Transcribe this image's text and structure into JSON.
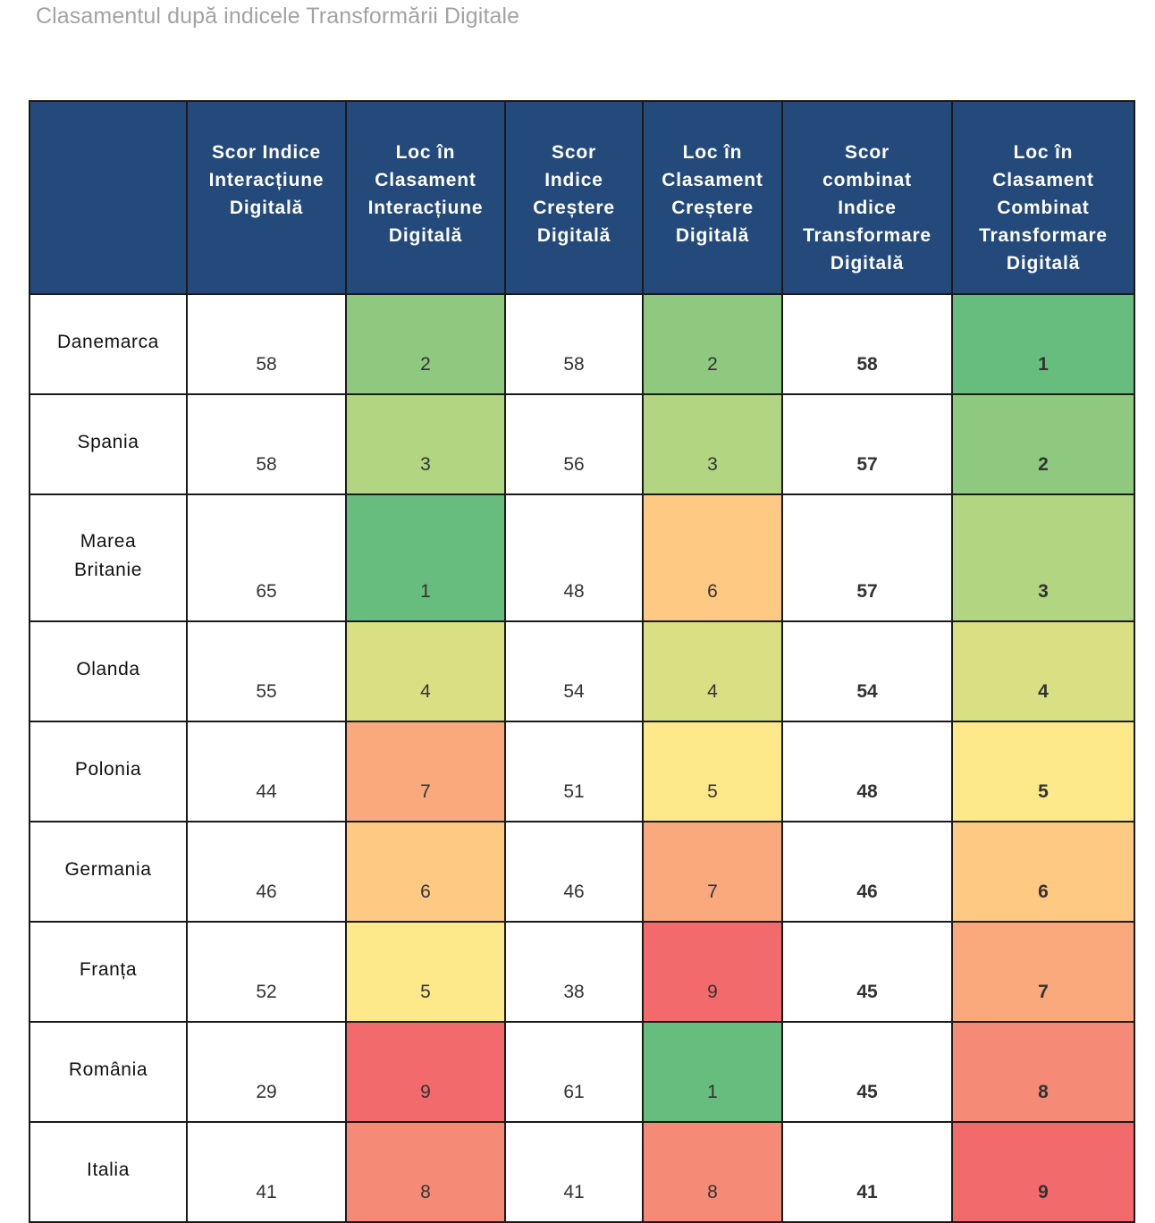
{
  "page": {
    "title": "Clasamentul după indicele Transformării Digitale"
  },
  "colors": {
    "header_bg": "#234a7b",
    "header_text": "#ffffff",
    "title_text": "#a3a3a3",
    "rank_1": "#66bd7d",
    "rank_2": "#8ec97f",
    "rank_3": "#b1d581",
    "rank_4": "#d8e083",
    "rank_5": "#fde98a",
    "rank_6": "#fdc983",
    "rank_7": "#f9a97c",
    "rank_8": "#f58a77",
    "rank_9": "#f26a6c"
  },
  "table": {
    "headers": [
      [
        ""
      ],
      [
        "Scor Indice",
        "Interacțiune",
        "Digitală"
      ],
      [
        "Loc în",
        "Clasament",
        "Interacțiune",
        "Digitală"
      ],
      [
        "Scor",
        "Indice",
        "Creștere",
        "Digitală"
      ],
      [
        "Loc în",
        "Clasament",
        "Creștere",
        "Digitală"
      ],
      [
        "Scor",
        "combinat",
        "Indice",
        "Transformare",
        "Digitală"
      ],
      [
        "Loc  în",
        "Clasament",
        "Combinat",
        "Transformare",
        "Digitală"
      ]
    ],
    "rows": [
      {
        "country": [
          "Danemarca"
        ],
        "interaction_score": "58",
        "interaction_rank": "2",
        "growth_score": "58",
        "growth_rank": "2",
        "combined_score": "58",
        "combined_rank": "1"
      },
      {
        "country": [
          "Spania"
        ],
        "interaction_score": "58",
        "interaction_rank": "3",
        "growth_score": "56",
        "growth_rank": "3",
        "combined_score": "57",
        "combined_rank": "2"
      },
      {
        "country": [
          "Marea",
          "Britanie"
        ],
        "interaction_score": "65",
        "interaction_rank": "1",
        "growth_score": "48",
        "growth_rank": "6",
        "combined_score": "57",
        "combined_rank": "3"
      },
      {
        "country": [
          "Olanda"
        ],
        "interaction_score": "55",
        "interaction_rank": "4",
        "growth_score": "54",
        "growth_rank": "4",
        "combined_score": "54",
        "combined_rank": "4"
      },
      {
        "country": [
          "Polonia"
        ],
        "interaction_score": "44",
        "interaction_rank": "7",
        "growth_score": "51",
        "growth_rank": "5",
        "combined_score": "48",
        "combined_rank": "5"
      },
      {
        "country": [
          "Germania"
        ],
        "interaction_score": "46",
        "interaction_rank": "6",
        "growth_score": "46",
        "growth_rank": "7",
        "combined_score": "46",
        "combined_rank": "6"
      },
      {
        "country": [
          "Franța"
        ],
        "interaction_score": "52",
        "interaction_rank": "5",
        "growth_score": "38",
        "growth_rank": "9",
        "combined_score": "45",
        "combined_rank": "7"
      },
      {
        "country": [
          "România"
        ],
        "interaction_score": "29",
        "interaction_rank": "9",
        "growth_score": "61",
        "growth_rank": "1",
        "combined_score": "45",
        "combined_rank": "8"
      },
      {
        "country": [
          "Italia"
        ],
        "interaction_score": "41",
        "interaction_rank": "8",
        "growth_score": "41",
        "growth_rank": "8",
        "combined_score": "41",
        "combined_rank": "9"
      }
    ]
  }
}
